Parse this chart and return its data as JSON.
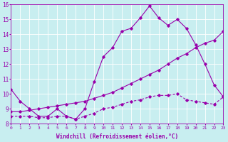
{
  "line1_x": [
    0,
    1,
    2,
    3,
    4,
    5,
    6,
    7,
    8,
    9,
    10,
    11,
    12,
    13,
    14,
    15,
    16,
    17,
    18,
    19,
    20,
    21,
    22,
    23
  ],
  "line1_y": [
    10.3,
    9.5,
    9.0,
    8.5,
    8.5,
    9.0,
    8.5,
    8.3,
    9.0,
    10.8,
    12.5,
    13.1,
    14.2,
    14.4,
    15.1,
    15.9,
    15.1,
    14.6,
    15.0,
    14.4,
    13.3,
    12.0,
    10.6,
    9.8
  ],
  "line2_x": [
    0,
    1,
    2,
    3,
    4,
    5,
    6,
    7,
    8,
    9,
    10,
    11,
    12,
    13,
    14,
    15,
    16,
    17,
    18,
    19,
    20,
    21,
    22,
    23
  ],
  "line2_y": [
    8.8,
    8.8,
    8.9,
    9.0,
    9.1,
    9.2,
    9.3,
    9.4,
    9.5,
    9.7,
    9.9,
    10.1,
    10.4,
    10.7,
    11.0,
    11.3,
    11.6,
    12.0,
    12.4,
    12.7,
    13.1,
    13.4,
    13.6,
    14.2
  ],
  "line3_x": [
    0,
    1,
    2,
    3,
    4,
    5,
    6,
    7,
    8,
    9,
    10,
    11,
    12,
    13,
    14,
    15,
    16,
    17,
    18,
    19,
    20,
    21,
    22,
    23
  ],
  "line3_y": [
    8.5,
    8.5,
    8.5,
    8.4,
    8.4,
    8.5,
    8.5,
    8.3,
    8.5,
    8.7,
    9.0,
    9.1,
    9.3,
    9.5,
    9.6,
    9.8,
    9.9,
    9.9,
    10.0,
    9.6,
    9.5,
    9.4,
    9.3,
    9.8
  ],
  "line_color": "#9900aa",
  "bg_color": "#c8eef0",
  "xlabel": "Windchill (Refroidissement éolien,°C)",
  "ylim": [
    8,
    16
  ],
  "xlim": [
    0,
    23
  ],
  "yticks": [
    8,
    9,
    10,
    11,
    12,
    13,
    14,
    15,
    16
  ],
  "xticks": [
    0,
    1,
    2,
    3,
    4,
    5,
    6,
    7,
    8,
    9,
    10,
    11,
    12,
    13,
    14,
    15,
    16,
    17,
    18,
    19,
    20,
    21,
    22,
    23
  ]
}
